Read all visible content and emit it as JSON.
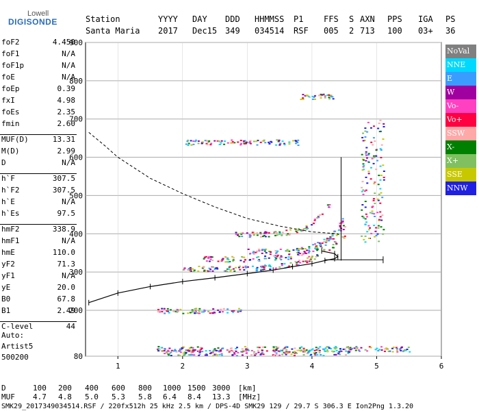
{
  "logo": {
    "top": "Lowell",
    "main": "DIGISONDE"
  },
  "header": {
    "labels": [
      "Station",
      "YYYY",
      "DAY",
      "DDD",
      "HHMMSS",
      "P1",
      "FFS",
      "S",
      "AXN",
      "PPS",
      "IGA",
      "PS"
    ],
    "values": [
      "Santa Maria",
      "2017",
      "Dec15",
      "349",
      "034514",
      "RSF",
      "005",
      "2",
      "713",
      "100",
      "03+",
      "36"
    ]
  },
  "params": [
    {
      "name": "foF2",
      "value": "4.450"
    },
    {
      "name": "foF1",
      "value": "N/A"
    },
    {
      "name": "foF1p",
      "value": "N/A"
    },
    {
      "name": "foE",
      "value": "N/A"
    },
    {
      "name": "foEp",
      "value": "0.39"
    },
    {
      "name": "fxI",
      "value": "4.98"
    },
    {
      "name": "foEs",
      "value": "2.35"
    },
    {
      "name": "fmin",
      "value": "2.60"
    },
    {
      "name": "MUF(D)",
      "value": "13.31"
    },
    {
      "name": "M(D)",
      "value": "2.99"
    },
    {
      "name": "D",
      "value": "N/A"
    },
    {
      "name": "h`F",
      "value": "307.5"
    },
    {
      "name": "h`F2",
      "value": "307.5"
    },
    {
      "name": "h`E",
      "value": "N/A"
    },
    {
      "name": "h`Es",
      "value": "97.5"
    },
    {
      "name": "hmF2",
      "value": "338.9"
    },
    {
      "name": "hmF1",
      "value": "N/A"
    },
    {
      "name": "hmE",
      "value": "110.0"
    },
    {
      "name": "yF2",
      "value": "71.3"
    },
    {
      "name": "yF1",
      "value": "N/A"
    },
    {
      "name": "yE",
      "value": "20.0"
    },
    {
      "name": "B0",
      "value": "67.8"
    },
    {
      "name": "B1",
      "value": "2.49"
    },
    {
      "name": "C-level",
      "value": "44"
    }
  ],
  "auto": {
    "line1": "Auto:",
    "line2": "Artist5",
    "line3": "500200"
  },
  "legend": [
    {
      "label": "NoVal",
      "color": "#808080"
    },
    {
      "label": "NNE",
      "color": "#00d8ff"
    },
    {
      "label": "E",
      "color": "#3a9cff"
    },
    {
      "label": "W",
      "color": "#a000a0"
    },
    {
      "label": "Vo-",
      "color": "#ff40c0"
    },
    {
      "label": "Vo+",
      "color": "#ff0040"
    },
    {
      "label": "SSW",
      "color": "#ffa8a8"
    },
    {
      "label": "X-",
      "color": "#008000"
    },
    {
      "label": "X+",
      "color": "#80c060"
    },
    {
      "label": "SSE",
      "color": "#c8c800"
    },
    {
      "label": "NNW",
      "color": "#2020e0"
    }
  ],
  "mufTable": {
    "dLabel": "D",
    "dValues": [
      "100",
      "200",
      "400",
      "600",
      "800",
      "1000",
      "1500",
      "3000"
    ],
    "dUnit": "[km]",
    "mLabel": "MUF",
    "mValues": [
      "4.7",
      "4.8",
      "5.0",
      "5.3",
      "5.8",
      "6.4",
      "8.4",
      "13.3"
    ],
    "mUnit": "[MHz]"
  },
  "footer": "SMK29_2017349034514.RSF / 220fx512h 25 kHz 2.5 km / DPS-4D SMK29 129 / 29.7 S 306.3 E Ion2Png 1.3.20",
  "chart_data": {
    "type": "scatter",
    "xlim": [
      0.5,
      6.0
    ],
    "ylim": [
      80,
      900
    ],
    "xticks": [
      1,
      2,
      3,
      4,
      5,
      6
    ],
    "yticks": [
      80,
      200,
      300,
      400,
      500,
      600,
      700,
      800,
      900
    ],
    "grid": true,
    "legend_position": "right",
    "traces": [
      {
        "x_range": [
          1.6,
          2.9
        ],
        "height": 200
      },
      {
        "x_range": [
          1.6,
          5.5
        ],
        "height": 100
      },
      {
        "x_range": [
          1.7,
          4.6
        ],
        "height": 90
      },
      {
        "x_range": [
          2.0,
          4.5
        ],
        "height": 310
      },
      {
        "x_range": [
          2.3,
          4.5
        ],
        "height": 335
      },
      {
        "x_range": [
          3.0,
          4.5
        ],
        "height": 355
      },
      {
        "x_range": [
          2.8,
          4.3
        ],
        "height": 400
      },
      {
        "x_range": [
          2.0,
          3.8
        ],
        "height": 640
      },
      {
        "x_range": [
          3.8,
          4.4
        ],
        "height": 760
      }
    ],
    "profile_curve": [
      [
        0.55,
        220
      ],
      [
        1.0,
        245
      ],
      [
        1.5,
        262
      ],
      [
        2.0,
        275
      ],
      [
        2.5,
        285
      ],
      [
        3.0,
        296
      ],
      [
        3.4,
        305
      ],
      [
        3.7,
        314
      ],
      [
        4.0,
        322
      ],
      [
        4.2,
        330
      ],
      [
        4.35,
        335
      ],
      [
        4.4,
        340
      ],
      [
        4.35,
        348
      ],
      [
        4.15,
        355
      ]
    ],
    "dashed_curve": [
      [
        0.55,
        665
      ],
      [
        0.8,
        630
      ],
      [
        1.0,
        600
      ],
      [
        1.5,
        545
      ],
      [
        2.0,
        505
      ],
      [
        2.5,
        470
      ],
      [
        3.0,
        440
      ],
      [
        3.5,
        420
      ],
      [
        4.0,
        405
      ],
      [
        4.4,
        400
      ]
    ],
    "vertical_cursor": {
      "x": 4.45,
      "y_range": [
        330,
        600
      ]
    },
    "hmf2_bar": {
      "x_range": [
        4.2,
        5.1
      ],
      "y": 332
    }
  }
}
